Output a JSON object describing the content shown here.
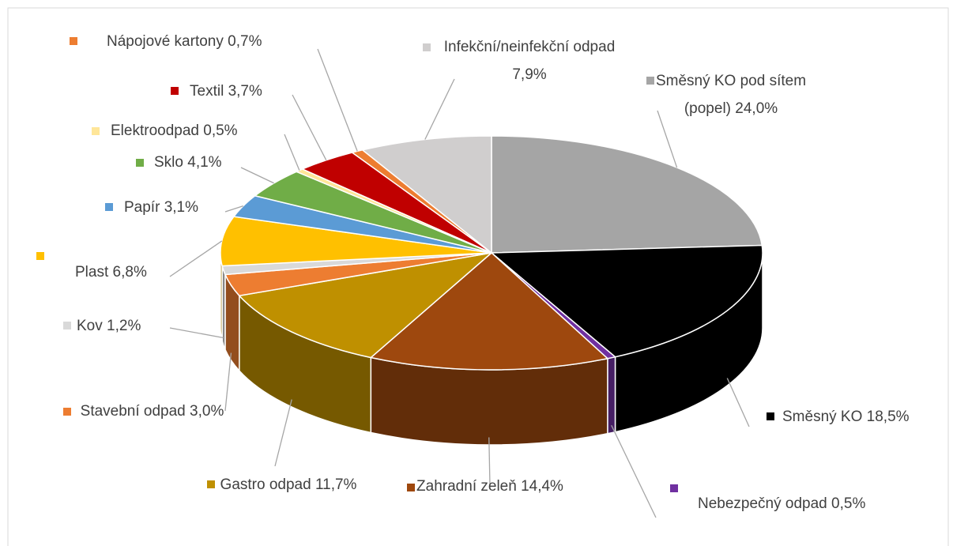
{
  "chart_data": {
    "type": "pie3d",
    "categories": [
      "Směsný KO pod sítem (popel)",
      "Směsný KO",
      "Nebezpečný odpad",
      "Zahradní zeleň",
      "Gastro odpad",
      "Stavební odpad",
      "Kov",
      "Plast",
      "Papír",
      "Sklo",
      "Elektroodpad",
      "Textil",
      "Nápojové kartony",
      "Infekční/neinfekční odpad"
    ],
    "values": [
      24.0,
      18.5,
      0.5,
      14.4,
      11.7,
      3.0,
      1.2,
      6.8,
      3.1,
      4.1,
      0.5,
      3.7,
      0.7,
      7.9
    ],
    "value_labels": [
      "24,0%",
      "18,5%",
      "0,5%",
      "14,4%",
      "11,7%",
      "3,0%",
      "1,2%",
      "6,8%",
      "3,1%",
      "4,1%",
      "0,5%",
      "3,7%",
      "0,7%",
      "7,9%"
    ],
    "colors": [
      "#a5a5a5",
      "#000000",
      "#7030a0",
      "#9e480e",
      "#bf9000",
      "#ed7d31",
      "#d9d9d9",
      "#ffc000",
      "#5b9bd5",
      "#70ad47",
      "#ffe699",
      "#c00000",
      "#ed7d31",
      "#d0cece"
    ]
  }
}
